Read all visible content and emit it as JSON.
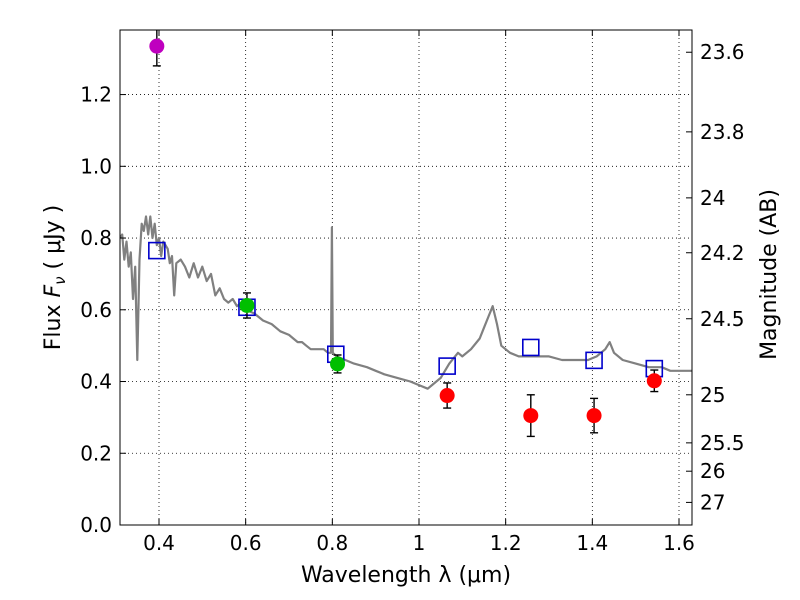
{
  "chart_data": {
    "type": "scatter",
    "title": "",
    "xlabel": "Wavelength  λ (μm)",
    "ylabel_parts": [
      "Flux  ",
      "F",
      "ν",
      "  ( μJy )"
    ],
    "ylabel2": "Magnitude (AB)",
    "xlim": [
      0.31,
      1.63
    ],
    "ylim": [
      0.0,
      1.38
    ],
    "grid": true,
    "x_ticks": [
      0.4,
      0.6,
      0.8,
      1.0,
      1.2,
      1.4,
      1.6
    ],
    "x_tick_labels": [
      "0.4",
      "0.6",
      "0.8",
      "1",
      "1.2",
      "1.4",
      "1.6"
    ],
    "y_ticks": [
      0.0,
      0.2,
      0.4,
      0.6,
      0.8,
      1.0,
      1.2
    ],
    "y_tick_labels": [
      "0.0",
      "0.2",
      "0.4",
      "0.6",
      "0.8",
      "1.0",
      "1.2"
    ],
    "y2_ticks": [
      {
        "label": "23.6",
        "flux": 1.318
      },
      {
        "label": "23.8",
        "flux": 1.096
      },
      {
        "label": "24",
        "flux": 0.912
      },
      {
        "label": "24.2",
        "flux": 0.759
      },
      {
        "label": "24.5",
        "flux": 0.575
      },
      {
        "label": "25",
        "flux": 0.363
      },
      {
        "label": "25.5",
        "flux": 0.229
      },
      {
        "label": "26",
        "flux": 0.15
      },
      {
        "label": "27",
        "flux": 0.063
      }
    ],
    "series": [
      {
        "name": "model SED",
        "kind": "line",
        "color": "#808080",
        "points": [
          [
            0.31,
            0.8
          ],
          [
            0.315,
            0.81
          ],
          [
            0.32,
            0.74
          ],
          [
            0.325,
            0.79
          ],
          [
            0.33,
            0.72
          ],
          [
            0.335,
            0.76
          ],
          [
            0.34,
            0.63
          ],
          [
            0.345,
            0.72
          ],
          [
            0.35,
            0.46
          ],
          [
            0.355,
            0.74
          ],
          [
            0.36,
            0.84
          ],
          [
            0.365,
            0.82
          ],
          [
            0.37,
            0.86
          ],
          [
            0.375,
            0.81
          ],
          [
            0.38,
            0.86
          ],
          [
            0.385,
            0.8
          ],
          [
            0.39,
            0.84
          ],
          [
            0.395,
            0.78
          ],
          [
            0.4,
            0.8
          ],
          [
            0.405,
            0.75
          ],
          [
            0.41,
            0.79
          ],
          [
            0.42,
            0.77
          ],
          [
            0.425,
            0.73
          ],
          [
            0.43,
            0.75
          ],
          [
            0.435,
            0.64
          ],
          [
            0.44,
            0.73
          ],
          [
            0.45,
            0.74
          ],
          [
            0.46,
            0.72
          ],
          [
            0.47,
            0.69
          ],
          [
            0.48,
            0.73
          ],
          [
            0.49,
            0.69
          ],
          [
            0.5,
            0.72
          ],
          [
            0.51,
            0.68
          ],
          [
            0.52,
            0.7
          ],
          [
            0.53,
            0.64
          ],
          [
            0.54,
            0.66
          ],
          [
            0.55,
            0.63
          ],
          [
            0.56,
            0.62
          ],
          [
            0.57,
            0.63
          ],
          [
            0.58,
            0.61
          ],
          [
            0.59,
            0.62
          ],
          [
            0.6,
            0.6
          ],
          [
            0.62,
            0.59
          ],
          [
            0.64,
            0.57
          ],
          [
            0.66,
            0.56
          ],
          [
            0.68,
            0.54
          ],
          [
            0.7,
            0.53
          ],
          [
            0.71,
            0.52
          ],
          [
            0.72,
            0.51
          ],
          [
            0.73,
            0.51
          ],
          [
            0.74,
            0.5
          ],
          [
            0.75,
            0.49
          ],
          [
            0.76,
            0.49
          ],
          [
            0.77,
            0.49
          ],
          [
            0.78,
            0.49
          ],
          [
            0.79,
            0.48
          ],
          [
            0.797,
            0.48
          ],
          [
            0.799,
            0.83
          ],
          [
            0.801,
            0.48
          ],
          [
            0.81,
            0.47
          ],
          [
            0.83,
            0.46
          ],
          [
            0.85,
            0.45
          ],
          [
            0.88,
            0.44
          ],
          [
            0.9,
            0.43
          ],
          [
            0.92,
            0.42
          ],
          [
            0.95,
            0.41
          ],
          [
            0.98,
            0.4
          ],
          [
            1.0,
            0.39
          ],
          [
            1.02,
            0.38
          ],
          [
            1.03,
            0.39
          ],
          [
            1.05,
            0.41
          ],
          [
            1.07,
            0.45
          ],
          [
            1.09,
            0.48
          ],
          [
            1.1,
            0.47
          ],
          [
            1.12,
            0.49
          ],
          [
            1.14,
            0.52
          ],
          [
            1.15,
            0.55
          ],
          [
            1.16,
            0.58
          ],
          [
            1.17,
            0.61
          ],
          [
            1.18,
            0.56
          ],
          [
            1.19,
            0.5
          ],
          [
            1.21,
            0.48
          ],
          [
            1.23,
            0.47
          ],
          [
            1.25,
            0.47
          ],
          [
            1.28,
            0.47
          ],
          [
            1.3,
            0.47
          ],
          [
            1.33,
            0.46
          ],
          [
            1.36,
            0.46
          ],
          [
            1.39,
            0.46
          ],
          [
            1.41,
            0.47
          ],
          [
            1.43,
            0.49
          ],
          [
            1.44,
            0.51
          ],
          [
            1.45,
            0.48
          ],
          [
            1.47,
            0.46
          ],
          [
            1.5,
            0.45
          ],
          [
            1.53,
            0.44
          ],
          [
            1.56,
            0.44
          ],
          [
            1.58,
            0.43
          ],
          [
            1.6,
            0.43
          ],
          [
            1.63,
            0.43
          ]
        ]
      },
      {
        "name": "model photometry",
        "kind": "open-square",
        "color": "#0000cc",
        "x": [
          0.395,
          0.603,
          0.808,
          1.065,
          1.258,
          1.404,
          1.543
        ],
        "y": [
          0.765,
          0.607,
          0.476,
          0.443,
          0.495,
          0.459,
          0.436
        ]
      },
      {
        "name": "observed magenta",
        "kind": "filled-circle",
        "color": "#bf00bf",
        "x": [
          0.395
        ],
        "y": [
          1.335
        ],
        "err": [
          0.055
        ]
      },
      {
        "name": "observed green",
        "kind": "filled-circle",
        "color": "#00bf00",
        "x": [
          0.603,
          0.812
        ],
        "y": [
          0.612,
          0.449
        ],
        "err": [
          0.035,
          0.025
        ]
      },
      {
        "name": "observed red",
        "kind": "filled-circle",
        "color": "#ff0000",
        "x": [
          1.065,
          1.258,
          1.404,
          1.543
        ],
        "y": [
          0.361,
          0.305,
          0.305,
          0.402
        ],
        "err": [
          0.035,
          0.058,
          0.048,
          0.03
        ]
      }
    ]
  }
}
